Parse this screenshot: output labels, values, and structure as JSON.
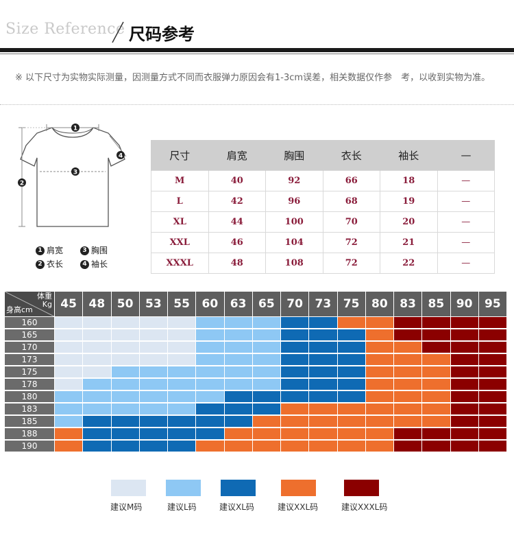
{
  "header": {
    "title_en": "Size Reference",
    "title_cn": "尺码参考"
  },
  "note": "※ 以下尺寸为实物实际测量，因测量方式不同而衣服弹力原因会有1-3cm误差，相关数据仅作参　考，以收到实物为准。",
  "diagram": {
    "legend": [
      {
        "num": "1",
        "label": "肩宽"
      },
      {
        "num": "3",
        "label": "胸围"
      },
      {
        "num": "2",
        "label": "衣长"
      },
      {
        "num": "4",
        "label": "袖长"
      }
    ]
  },
  "size_table": {
    "headers": [
      "尺寸",
      "肩宽",
      "胸围",
      "衣长",
      "袖长",
      "—"
    ],
    "rows": [
      [
        "M",
        "40",
        "92",
        "66",
        "18",
        "—"
      ],
      [
        "L",
        "42",
        "96",
        "68",
        "19",
        "—"
      ],
      [
        "XL",
        "44",
        "100",
        "70",
        "20",
        "—"
      ],
      [
        "XXL",
        "46",
        "104",
        "72",
        "21",
        "—"
      ],
      [
        "XXXL",
        "48",
        "108",
        "72",
        "22",
        "—"
      ]
    ]
  },
  "grid": {
    "corner_top": "体重Kg",
    "corner_bottom": "身高cm",
    "weights": [
      "45",
      "48",
      "50",
      "53",
      "55",
      "60",
      "63",
      "65",
      "70",
      "73",
      "75",
      "80",
      "83",
      "85",
      "90",
      "95"
    ],
    "heights": [
      "160",
      "165",
      "170",
      "173",
      "175",
      "178",
      "180",
      "183",
      "185",
      "188",
      "190"
    ],
    "colors": {
      "M": "#dce6f2",
      "L": "#8ec8f4",
      "XL": "#0f6ab4",
      "XXL": "#ee6f2d",
      "XXXL": "#8b0000"
    },
    "cells": [
      [
        "M",
        "M",
        "M",
        "M",
        "M",
        "L",
        "L",
        "L",
        "XL",
        "XL",
        "XXL",
        "XXL",
        "XXXL",
        "XXXL",
        "XXXL",
        "XXXL"
      ],
      [
        "M",
        "M",
        "M",
        "M",
        "M",
        "L",
        "L",
        "L",
        "XL",
        "XL",
        "XL",
        "XXL",
        "XXXL",
        "XXXL",
        "XXXL",
        "XXXL"
      ],
      [
        "M",
        "M",
        "M",
        "M",
        "M",
        "L",
        "L",
        "L",
        "XL",
        "XL",
        "XL",
        "XXL",
        "XXL",
        "XXXL",
        "XXXL",
        "XXXL"
      ],
      [
        "M",
        "M",
        "M",
        "M",
        "M",
        "L",
        "L",
        "L",
        "XL",
        "XL",
        "XL",
        "XXL",
        "XXL",
        "XXL",
        "XXXL",
        "XXXL"
      ],
      [
        "M",
        "M",
        "L",
        "L",
        "L",
        "L",
        "L",
        "L",
        "XL",
        "XL",
        "XL",
        "XXL",
        "XXL",
        "XXL",
        "XXXL",
        "XXXL"
      ],
      [
        "M",
        "L",
        "L",
        "L",
        "L",
        "L",
        "L",
        "L",
        "XL",
        "XL",
        "XL",
        "XXL",
        "XXL",
        "XXL",
        "XXXL",
        "XXXL"
      ],
      [
        "L",
        "L",
        "L",
        "L",
        "L",
        "L",
        "XL",
        "XL",
        "XL",
        "XL",
        "XL",
        "XXL",
        "XXL",
        "XXL",
        "XXXL",
        "XXXL"
      ],
      [
        "L",
        "L",
        "L",
        "L",
        "L",
        "XL",
        "XL",
        "XL",
        "XXL",
        "XXL",
        "XXL",
        "XXL",
        "XXL",
        "XXL",
        "XXXL",
        "XXXL"
      ],
      [
        "L",
        "XL",
        "XL",
        "XL",
        "XL",
        "XL",
        "XL",
        "XXL",
        "XXL",
        "XXL",
        "XXL",
        "XXL",
        "XXL",
        "XXL",
        "XXXL",
        "XXXL"
      ],
      [
        "XXL",
        "XL",
        "XL",
        "XL",
        "XL",
        "XL",
        "XXL",
        "XXL",
        "XXL",
        "XXL",
        "XXL",
        "XXL",
        "XXXL",
        "XXXL",
        "XXXL",
        "XXXL"
      ],
      [
        "XXL",
        "XL",
        "XL",
        "XL",
        "XL",
        "XXL",
        "XXL",
        "XXL",
        "XXL",
        "XXL",
        "XXL",
        "XXL",
        "XXXL",
        "XXXL",
        "XXXL",
        "XXXL"
      ]
    ]
  },
  "legend": [
    {
      "key": "M",
      "label": "建议M码"
    },
    {
      "key": "L",
      "label": "建议L码"
    },
    {
      "key": "XL",
      "label": "建议XL码"
    },
    {
      "key": "XXL",
      "label": "建议XXL码"
    },
    {
      "key": "XXXL",
      "label": "建议XXXL码"
    }
  ]
}
